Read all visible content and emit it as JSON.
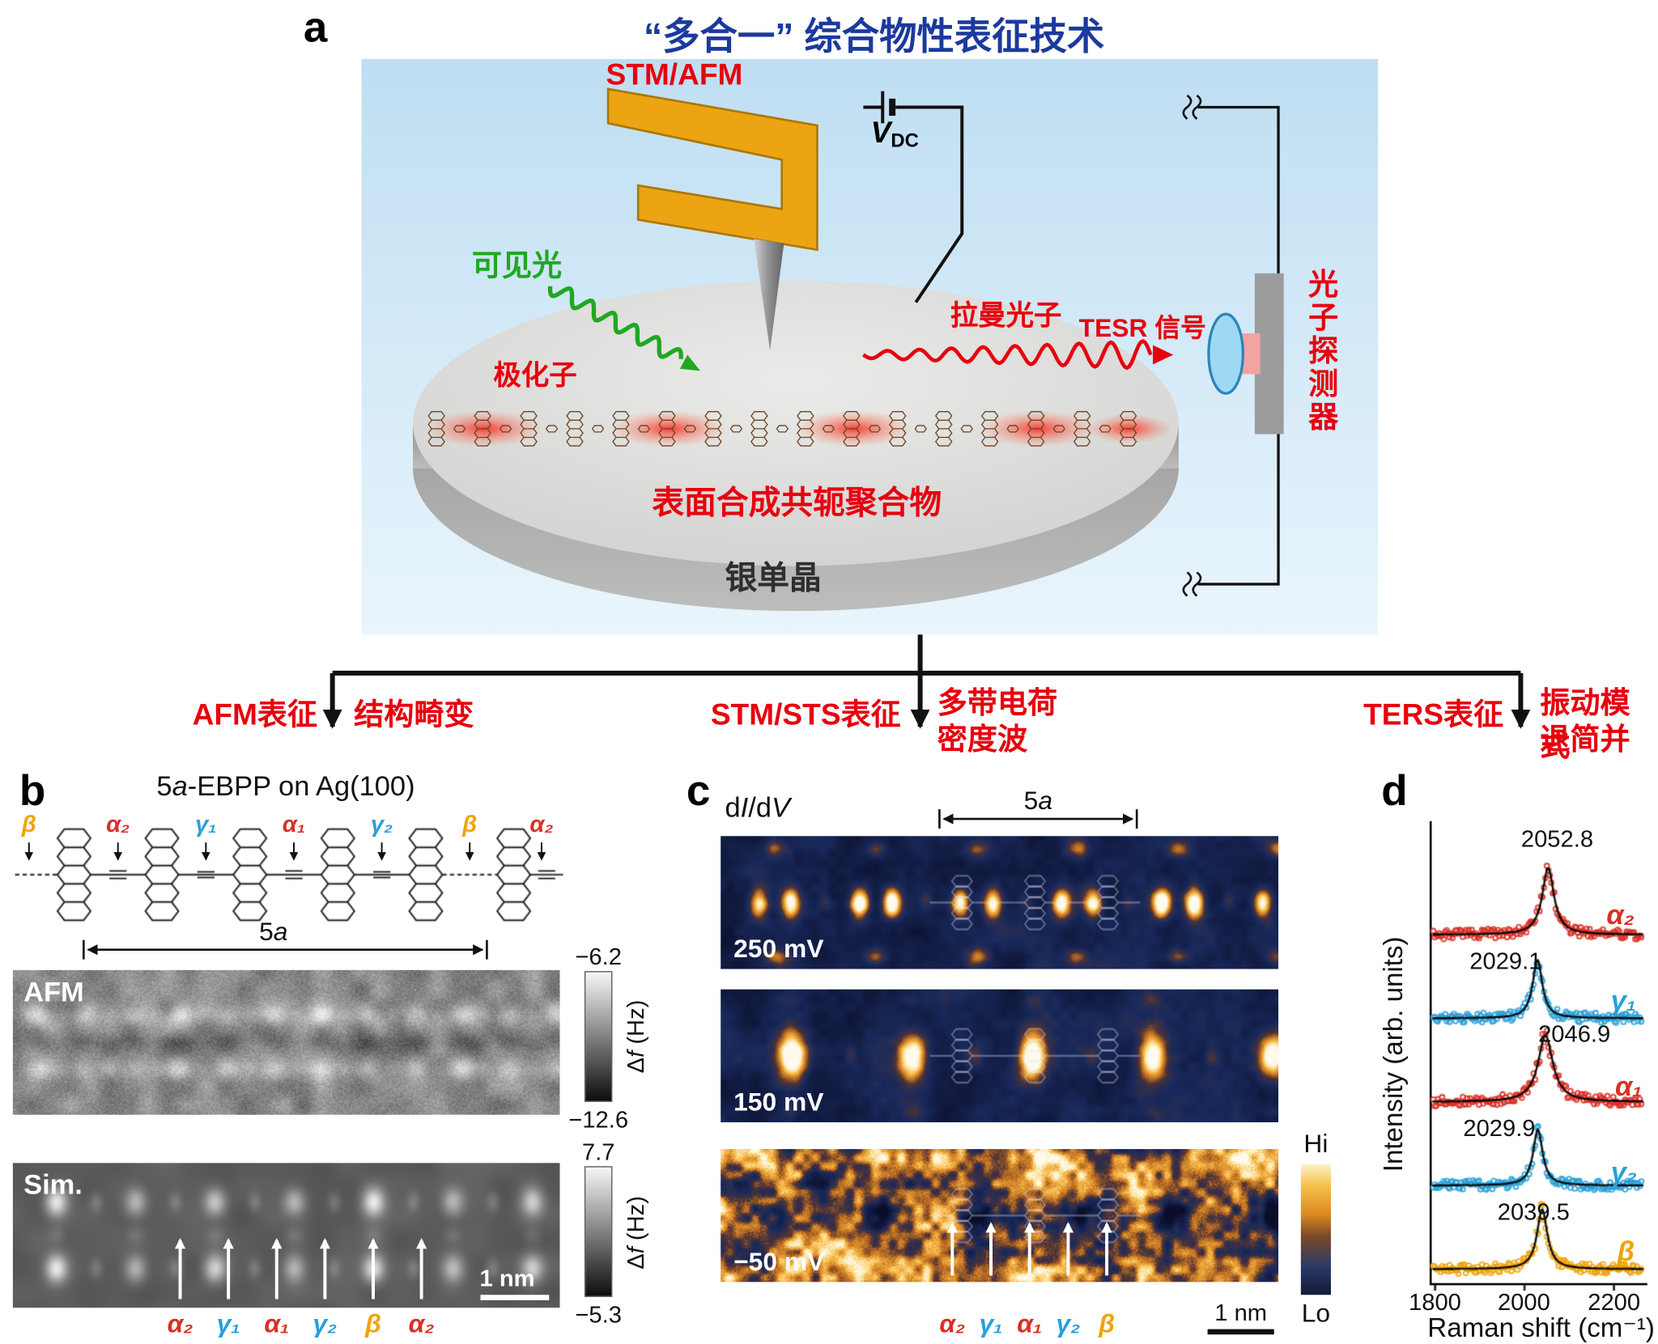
{
  "colors": {
    "title_blue": "#1b3a9e",
    "cjk_red": "#e8000d",
    "alpha_red": "#d93025",
    "gamma_blue": "#29a0d8",
    "beta_orange": "#f0a30a",
    "map_hi": "#fdf2cf",
    "map_lo": "#101830"
  },
  "panels": {
    "a": "a",
    "b": "b",
    "c": "c",
    "d": "d"
  },
  "panel_a": {
    "title": "“多合一” 综合物性表征技术",
    "stm_afm": "STM/AFM",
    "vdc_v": "V",
    "vdc_sub": "DC",
    "visible_light": "可见光",
    "polaron": "极化子",
    "raman_photon": "拉曼光子",
    "tesr_signal": "TESR 信号",
    "photon_detector": "光子探测器",
    "surface_polymer": "表面合成共轭聚合物",
    "silver_crystal": "银单晶"
  },
  "branches": {
    "afm_technique": "AFM表征",
    "afm_result": "结构畸变",
    "stm_technique": "STM/STS表征",
    "stm_result_line1": "多带电荷",
    "stm_result_line2": "密度波",
    "ters_technique": "TERS表征",
    "ters_result_line1": "振动模式",
    "ters_result_line2": "退简并"
  },
  "panel_b": {
    "title_num": "5",
    "title_a": "a",
    "title_rest": "-EBPP on Ag(100)",
    "bond_labels": [
      "β",
      "α₂",
      "γ₁",
      "α₁",
      "γ₂",
      "β",
      "α₂"
    ],
    "span_num": "5",
    "span_a": "a",
    "afm_label": "AFM",
    "sim_label": "Sim.",
    "afm_scale_top": "−6.2",
    "afm_scale_bottom": "−12.6",
    "sim_scale_top": "7.7",
    "sim_scale_bottom": "−5.3",
    "scale_unit_delta": "Δ",
    "scale_unit_f": "f",
    "scale_unit_rest": " (Hz)",
    "scalebar": "1 nm",
    "mode_labels": [
      "α₂",
      "γ₁",
      "α₁",
      "γ₂",
      "β",
      "α₂"
    ]
  },
  "panel_c": {
    "didv_d1": "d",
    "didv_i": "I",
    "didv_d2": "/d",
    "didv_v": "V",
    "span_num": "5",
    "span_a": "a",
    "bias_labels": [
      "250 mV",
      "150 mV",
      "−50 mV"
    ],
    "colorbar_hi": "Hi",
    "colorbar_lo": "Lo",
    "scalebar": "1 nm",
    "mode_labels": [
      "α₂",
      "γ₁",
      "α₁",
      "γ₂",
      "β"
    ]
  },
  "panel_d": {
    "ylabel": "Intensity (arb. units)",
    "xlabel": "Raman shift (cm⁻¹)",
    "xtick_labels": [
      "1800",
      "2000",
      "2200"
    ]
  },
  "chart_data": {
    "type": "scatter",
    "xlabel": "Raman shift (cm⁻¹)",
    "ylabel": "Intensity (arb. units)",
    "xlim": [
      1790,
      2270
    ],
    "xticks": [
      1800,
      2000,
      2200
    ],
    "grid": false,
    "legend_position": "right-of-each-curve",
    "description": "Five vertically stacked TERS spectra (open-circle data with black Lorentzian fits)",
    "series": [
      {
        "name": "α₂",
        "color": "#d93025",
        "peak_center": 2052.8,
        "peak_label": "2052.8",
        "peak_height": 1.0,
        "peak_hwhm": 16
      },
      {
        "name": "γ₁",
        "color": "#29a0d8",
        "peak_center": 2029.1,
        "peak_label": "2029.1",
        "peak_height": 0.88,
        "peak_hwhm": 13
      },
      {
        "name": "α₁",
        "color": "#d93025",
        "peak_center": 2046.9,
        "peak_label": "2046.9",
        "peak_height": 1.0,
        "peak_hwhm": 20
      },
      {
        "name": "γ₂",
        "color": "#29a0d8",
        "peak_center": 2029.9,
        "peak_label": "2029.9",
        "peak_height": 0.84,
        "peak_hwhm": 13
      },
      {
        "name": "β",
        "color": "#f0a30a",
        "peak_center": 2039.5,
        "peak_label": "2039.5",
        "peak_height": 0.9,
        "peak_hwhm": 14
      }
    ]
  }
}
